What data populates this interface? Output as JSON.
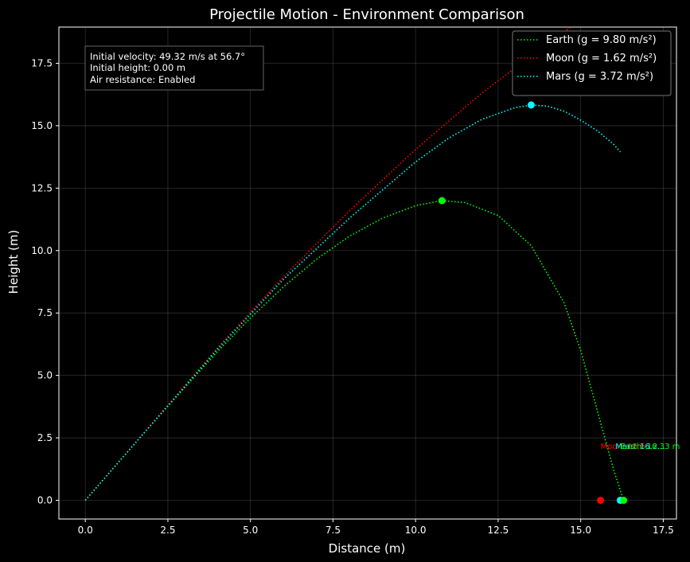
{
  "chart_data": {
    "type": "line",
    "title": "Projectile Motion - Environment Comparison",
    "xlabel": "Distance (m)",
    "ylabel": "Height (m)",
    "xlim": [
      -0.8,
      17.9
    ],
    "ylim": [
      -0.75,
      18.95
    ],
    "xticks": [
      0.0,
      2.5,
      5.0,
      7.5,
      10.0,
      12.5,
      15.0,
      17.5
    ],
    "yticks": [
      0.0,
      2.5,
      5.0,
      7.5,
      10.0,
      12.5,
      15.0,
      17.5
    ],
    "xtick_labels": [
      "0.0",
      "2.5",
      "5.0",
      "7.5",
      "10.0",
      "12.5",
      "15.0",
      "17.5"
    ],
    "ytick_labels": [
      "0.0",
      "2.5",
      "5.0",
      "7.5",
      "10.0",
      "12.5",
      "15.0",
      "17.5"
    ],
    "grid": true,
    "legend_position": "top-right",
    "info_box": [
      "Initial velocity: 49.32 m/s at 56.7°",
      "Initial height: 0.00 m",
      "Air resistance: Enabled"
    ],
    "series": [
      {
        "name": "Earth (g = 9.80 m/s²)",
        "color": "#00ff00",
        "x": [
          0,
          1,
          2,
          3,
          4,
          5,
          6,
          7,
          8,
          9,
          10,
          10.8,
          11.5,
          12.5,
          13.5,
          14.5,
          15.0,
          15.5,
          16.0,
          16.3
        ],
        "y": [
          0,
          1.52,
          3.03,
          4.5,
          5.95,
          7.3,
          8.55,
          9.65,
          10.58,
          11.3,
          11.8,
          12.0,
          11.92,
          11.4,
          10.2,
          7.9,
          6.0,
          3.6,
          1.2,
          0
        ],
        "peak": [
          10.8,
          12.0
        ]
      },
      {
        "name": "Moon (g = 1.62 m/s²)",
        "color": "#ff0000",
        "x": [
          0,
          2,
          4,
          6,
          8,
          10,
          12,
          14,
          14.7
        ],
        "y": [
          0,
          3.05,
          6.1,
          8.95,
          11.6,
          14.05,
          16.3,
          18.3,
          18.95
        ],
        "peak": null
      },
      {
        "name": "Mars (g = 3.72 m/s²)",
        "color": "#00ffff",
        "x": [
          0,
          2,
          4,
          6,
          8,
          10,
          11,
          12,
          13,
          13.5,
          14,
          14.5,
          15,
          15.5,
          16,
          16.2
        ],
        "y": [
          0,
          3.03,
          6.05,
          8.85,
          11.3,
          13.55,
          14.5,
          15.25,
          15.72,
          15.83,
          15.78,
          15.58,
          15.22,
          14.8,
          14.25,
          13.95
        ],
        "peak": [
          13.5,
          15.83
        ]
      }
    ],
    "landing_points": [
      {
        "x": 15.6,
        "y": 0,
        "color": "#ff0000"
      },
      {
        "x": 16.2,
        "y": 0,
        "color": "#00ffff"
      },
      {
        "x": 16.3,
        "y": 0,
        "color": "#00ff00"
      }
    ],
    "landing_labels": [
      {
        "text": "Moon: 15.6...",
        "x": 15.6,
        "y": 2.05,
        "color": "#ff0000"
      },
      {
        "text": "Mars: 16.2...",
        "x": 16.05,
        "y": 2.05,
        "color": "#00ffff"
      },
      {
        "text": "Earth: 16.33 m",
        "x": 16.2,
        "y": 2.05,
        "color": "#00ff00"
      }
    ]
  }
}
